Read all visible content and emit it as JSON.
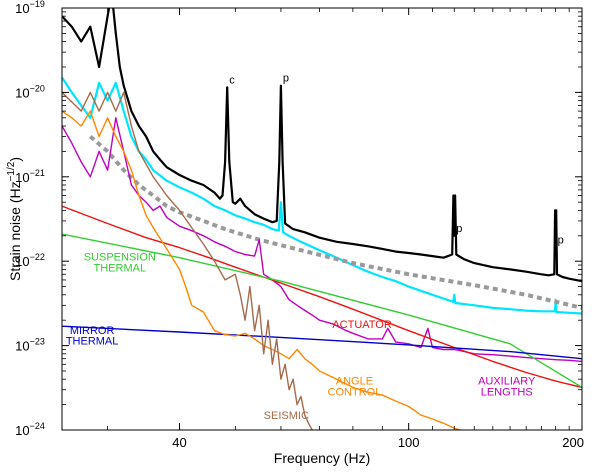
{
  "chart_data": {
    "type": "line",
    "title": "",
    "xlabel": "Frequency (Hz)",
    "ylabel": "Strain noise (Hz",
    "ylabel_exp": "−1/2",
    "ylabel_close": ")",
    "x_scale": "log",
    "y_scale": "log",
    "xlim": [
      25,
      200
    ],
    "ylim": [
      1e-24,
      1e-19
    ],
    "grid": false,
    "legend": "none",
    "x_ticks": [
      {
        "value": 40,
        "label": "40"
      },
      {
        "value": 100,
        "label": "100"
      },
      {
        "value": 200,
        "label": "200"
      }
    ],
    "y_ticks": [
      {
        "value": 1e-24,
        "base": "10",
        "exp": "−24"
      },
      {
        "value": 1e-23,
        "base": "10",
        "exp": "−23"
      },
      {
        "value": 1e-22,
        "base": "10",
        "exp": "−22"
      },
      {
        "value": 1e-21,
        "base": "10",
        "exp": "−21"
      },
      {
        "value": 1e-20,
        "base": "10",
        "exp": "−20"
      },
      {
        "value": 1e-19,
        "base": "10",
        "exp": "−19"
      }
    ],
    "series": [
      {
        "key": "measured",
        "color": "#000000",
        "width": 2.2,
        "dash": "",
        "x": [
          25,
          26,
          27,
          28,
          29,
          30,
          30.5,
          31,
          31.5,
          32,
          33,
          34,
          35,
          36,
          37,
          38,
          40,
          42,
          44,
          46,
          47,
          47.5,
          48,
          48.4,
          48.8,
          49.5,
          50,
          51,
          52,
          54,
          56,
          58,
          59,
          59.6,
          60,
          60.4,
          61,
          63,
          66,
          70,
          75,
          80,
          85,
          90,
          95,
          100,
          105,
          110,
          115,
          119,
          119.6,
          120,
          120.4,
          121,
          125,
          130,
          140,
          150,
          160,
          170,
          175,
          179,
          179.6,
          180,
          180.4,
          181,
          185,
          190,
          195,
          200
        ],
        "y": [
          8e-20,
          6e-20,
          4e-20,
          6e-20,
          2e-20,
          8e-20,
          1.5e-19,
          5e-20,
          2e-20,
          1.2e-20,
          6e-21,
          4e-21,
          3e-21,
          2e-21,
          1.6e-21,
          1.3e-21,
          1.05e-21,
          9e-22,
          8e-22,
          6.5e-22,
          5.5e-22,
          6e-22,
          1.5e-21,
          1.15e-20,
          1.5e-21,
          5e-22,
          4.8e-22,
          5.5e-22,
          4.5e-22,
          3.6e-22,
          3.2e-22,
          2.9e-22,
          3e-22,
          1.5e-21,
          1.2e-20,
          1.5e-21,
          2.8e-22,
          2.4e-22,
          2.2e-22,
          1.9e-22,
          1.7e-22,
          1.6e-22,
          1.5e-22,
          1.4e-22,
          1.3e-22,
          1.25e-22,
          1.2e-22,
          1.15e-22,
          1.1e-22,
          1.2e-22,
          6e-22,
          2e-22,
          6e-22,
          1.2e-22,
          1.05e-22,
          9.5e-23,
          8.5e-23,
          8e-23,
          7.5e-23,
          7e-23,
          6.8e-23,
          7e-23,
          4e-22,
          1.45e-22,
          4e-22,
          7e-23,
          6.5e-23,
          6.2e-23,
          6e-23,
          5.8e-23
        ]
      },
      {
        "key": "total-noise",
        "color": "#00e5ff",
        "width": 2.2,
        "dash": "",
        "x": [
          25,
          26,
          27,
          28,
          29,
          30,
          31,
          32,
          33,
          34,
          35,
          36,
          38,
          40,
          42,
          44,
          46,
          48,
          50,
          52,
          54,
          56,
          58,
          59.5,
          60,
          60.5,
          62,
          65,
          70,
          75,
          80,
          85,
          90,
          95,
          100,
          110,
          119.5,
          120,
          120.5,
          130,
          140,
          150,
          160,
          170,
          179.5,
          180,
          180.5,
          190,
          200
        ],
        "y": [
          1.5e-20,
          1e-20,
          7e-21,
          5e-21,
          1.3e-20,
          8e-21,
          1.3e-20,
          6e-21,
          3e-21,
          2e-21,
          1.6e-21,
          1.2e-21,
          9e-22,
          7.5e-22,
          6.5e-22,
          5.5e-22,
          4.5e-22,
          4e-22,
          3.5e-22,
          3.2e-22,
          2.9e-22,
          2.7e-22,
          2.4e-22,
          2.3e-22,
          5e-22,
          2.2e-22,
          2e-22,
          1.7e-22,
          1.35e-22,
          1.1e-22,
          9e-23,
          7.5e-23,
          6.5e-23,
          5.8e-23,
          5e-23,
          4e-23,
          3.3e-23,
          4e-23,
          3.2e-23,
          3e-23,
          2.8e-23,
          2.7e-23,
          2.6e-23,
          2.55e-23,
          2.55e-23,
          3.5e-23,
          2.5e-23,
          2.45e-23,
          2.4e-23
        ]
      },
      {
        "key": "design",
        "color": "#999999",
        "width": 4,
        "dash": "5,4",
        "x": [
          28,
          30,
          32,
          34,
          36,
          38,
          40,
          44,
          48,
          55,
          65,
          80,
          100,
          130,
          160,
          200
        ],
        "y": [
          3e-21,
          2e-21,
          1.2e-21,
          8e-22,
          6e-22,
          4.5e-22,
          3.8e-22,
          3e-22,
          2.4e-22,
          1.8e-22,
          1.35e-22,
          9.5e-23,
          7e-23,
          5.2e-23,
          4e-23,
          2.8e-23
        ]
      },
      {
        "key": "auxiliary-lengths",
        "color": "#c000c0",
        "width": 1.4,
        "dash": "",
        "x": [
          25,
          26,
          27,
          28,
          29,
          30,
          31,
          32,
          33,
          34,
          35,
          36,
          37,
          38,
          40,
          42,
          44,
          46,
          48,
          50,
          52,
          54,
          55,
          56,
          58,
          60,
          62,
          65,
          68,
          70,
          74,
          78,
          80,
          85,
          90,
          92,
          95,
          100,
          105,
          108,
          110,
          115,
          120,
          125,
          130,
          140,
          150,
          160,
          170,
          180,
          190,
          200
        ],
        "y": [
          4e-21,
          2.5e-21,
          1.5e-21,
          1e-21,
          2e-21,
          1.2e-21,
          5e-21,
          2e-21,
          8e-22,
          6e-22,
          5e-22,
          4e-22,
          4.5e-22,
          3.3e-22,
          2.6e-22,
          2.3e-22,
          2e-22,
          1.7e-22,
          1.5e-22,
          1.3e-22,
          1.2e-22,
          1.15e-22,
          1.8e-22,
          7e-23,
          6e-23,
          5e-23,
          3.5e-23,
          2.8e-23,
          2.3e-23,
          2e-23,
          1.8e-23,
          1.5e-23,
          1.4e-23,
          1.2e-23,
          1.2e-23,
          1.6e-23,
          1.1e-23,
          1.05e-23,
          9.5e-24,
          1.6e-23,
          9.5e-24,
          9e-24,
          9e-24,
          8.5e-24,
          8e-24,
          7.8e-24,
          7.5e-24,
          7.2e-24,
          7e-24,
          6.8e-24,
          6.7e-24,
          6.5e-24
        ]
      },
      {
        "key": "actuator",
        "color": "#ee1111",
        "width": 1.4,
        "dash": "",
        "x": [
          25,
          30,
          35,
          40,
          45,
          50,
          60,
          70,
          80,
          100,
          120,
          140,
          160,
          180,
          200
        ],
        "y": [
          4.5e-22,
          2.8e-22,
          1.9e-22,
          1.45e-22,
          1.1e-22,
          8.5e-23,
          5.5e-23,
          3.8e-23,
          2.7e-23,
          1.5e-23,
          9.5e-24,
          6.5e-24,
          4.8e-24,
          3.8e-24,
          3.2e-24
        ]
      },
      {
        "key": "suspension-thermal",
        "color": "#33cc33",
        "width": 1.4,
        "dash": "",
        "x": [
          25,
          40,
          60,
          100,
          150,
          200
        ],
        "y": [
          2.1e-22,
          1.1e-22,
          5.8e-23,
          2.3e-23,
          1.05e-23,
          3.2e-24
        ]
      },
      {
        "key": "mirror-thermal",
        "color": "#0000cc",
        "width": 1.4,
        "dash": "",
        "x": [
          25,
          40,
          60,
          100,
          150,
          200
        ],
        "y": [
          1.7e-23,
          1.45e-23,
          1.25e-23,
          1.02e-23,
          8.5e-24,
          7e-24
        ]
      },
      {
        "key": "angle-control",
        "color": "#ff8800",
        "width": 1.4,
        "dash": "",
        "x": [
          25,
          26,
          27,
          28,
          29,
          30,
          31,
          32,
          33,
          34,
          35,
          36,
          38,
          40,
          41,
          42,
          44,
          46,
          48,
          50,
          52,
          54,
          56,
          58,
          60,
          62,
          64,
          66,
          68,
          70,
          75,
          80,
          85,
          90,
          95,
          100,
          105,
          110,
          115,
          120,
          123
        ],
        "y": [
          6e-21,
          5e-21,
          4e-21,
          6e-21,
          3e-21,
          5e-21,
          3e-21,
          2e-21,
          1.2e-21,
          6e-22,
          3.5e-22,
          2.5e-22,
          1.4e-22,
          8e-23,
          5e-23,
          3e-23,
          2.5e-23,
          1.5e-23,
          1.35e-23,
          1.3e-23,
          1.4e-23,
          1.2e-23,
          1e-23,
          9e-24,
          8e-24,
          7e-24,
          9e-24,
          7e-24,
          6e-24,
          5e-24,
          4e-24,
          3.2e-24,
          2.8e-24,
          2.6e-24,
          2.2e-24,
          1.9e-24,
          1.5e-24,
          1.35e-24,
          1.2e-24,
          1.05e-24,
          1e-24
        ]
      },
      {
        "key": "seismic",
        "color": "#a56b4a",
        "width": 1.4,
        "dash": "",
        "x": [
          25,
          27,
          28,
          29,
          30,
          31,
          32,
          33,
          34,
          36,
          38,
          40,
          42,
          44,
          46,
          48,
          50,
          51,
          52,
          53,
          54,
          55,
          56,
          57,
          58,
          59,
          60,
          61,
          62,
          63,
          64,
          65,
          66,
          67,
          68
        ],
        "y": [
          1e-20,
          6e-21,
          1e-20,
          6e-21,
          1e-20,
          6e-21,
          1e-20,
          4e-21,
          2e-21,
          1e-21,
          6e-22,
          4e-22,
          2.5e-22,
          1.6e-22,
          1e-22,
          6e-23,
          7e-23,
          4e-23,
          2e-23,
          5e-23,
          1.5e-23,
          3e-23,
          8e-24,
          2e-23,
          6e-24,
          1.2e-23,
          4e-24,
          6e-24,
          3e-24,
          4e-24,
          2e-24,
          2.5e-24,
          1.5e-24,
          1.2e-24,
          1e-24
        ]
      }
    ],
    "annotations": [
      {
        "text": "c",
        "x": 48.4,
        "y": 1.15e-20,
        "color": "#000000",
        "kind": "peak"
      },
      {
        "text": "p",
        "x": 60,
        "y": 1.2e-20,
        "color": "#000000",
        "kind": "peak"
      },
      {
        "text": "p",
        "x": 120,
        "y": 2e-22,
        "color": "#000000",
        "kind": "peak"
      },
      {
        "text": "p",
        "x": 180,
        "y": 1.45e-22,
        "color": "#000000",
        "kind": "peak"
      },
      {
        "text": "SUSPENSION",
        "x": 31.5,
        "y": 1.02e-22,
        "color": "#33cc33",
        "kind": "label"
      },
      {
        "text": "THERMAL",
        "x": 31.5,
        "y": 7.6e-23,
        "color": "#33cc33",
        "kind": "label"
      },
      {
        "text": "MIRROR",
        "x": 28.2,
        "y": 1.38e-23,
        "color": "#0000cc",
        "kind": "label"
      },
      {
        "text": "THERMAL",
        "x": 28.2,
        "y": 1.03e-23,
        "color": "#0000cc",
        "kind": "label"
      },
      {
        "text": "ACTUATOR",
        "x": 83,
        "y": 1.62e-23,
        "color": "#ee1111",
        "kind": "label"
      },
      {
        "text": "ANGLE",
        "x": 80.5,
        "y": 3.45e-24,
        "color": "#ff8800",
        "kind": "label"
      },
      {
        "text": "CONTROL",
        "x": 80.5,
        "y": 2.55e-24,
        "color": "#ff8800",
        "kind": "label"
      },
      {
        "text": "SEISMIC",
        "x": 61.3,
        "y": 1.35e-24,
        "color": "#a56b4a",
        "kind": "label"
      },
      {
        "text": "AUXILIARY",
        "x": 148,
        "y": 3.45e-24,
        "color": "#c000c0",
        "kind": "label"
      },
      {
        "text": "LENGTHS",
        "x": 148,
        "y": 2.55e-24,
        "color": "#c000c0",
        "kind": "label"
      }
    ]
  }
}
